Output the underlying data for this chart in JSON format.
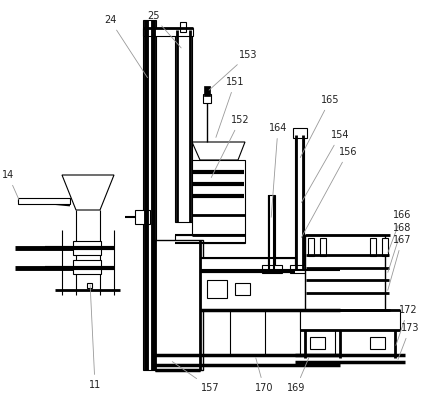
{
  "bg_color": "#ffffff",
  "lc": "#000000",
  "ac": "#888888",
  "fig_width": 4.29,
  "fig_height": 4.08,
  "dpi": 100,
  "ann_fs": 7.0
}
